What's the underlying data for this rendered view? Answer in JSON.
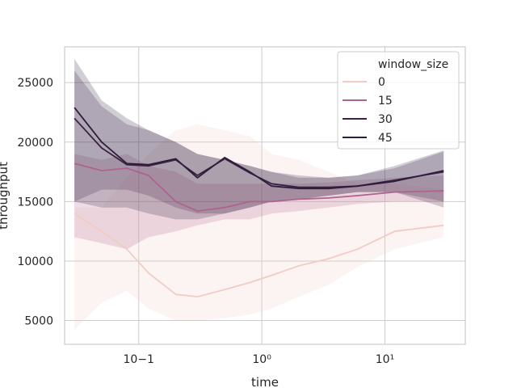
{
  "chart_data": {
    "type": "line",
    "xlabel": "time",
    "ylabel": "throughput",
    "xscale": "log",
    "xlim": [
      0.025,
      45
    ],
    "ylim": [
      3000,
      28000
    ],
    "xticks": [
      {
        "value": 0.1,
        "label": "10−1"
      },
      {
        "value": 1,
        "label": "10⁰"
      },
      {
        "value": 10,
        "label": "10¹"
      }
    ],
    "yticks": [
      5000,
      10000,
      15000,
      20000,
      25000
    ],
    "grid": true,
    "legend": {
      "title": "window_size",
      "position": "top-right",
      "entries": [
        "0",
        "15",
        "30",
        "45"
      ]
    },
    "series": [
      {
        "name": "0",
        "color": "#f0ccc4",
        "band_lower": [
          4200,
          6500,
          7500,
          6000,
          5000,
          5000,
          5200,
          5500,
          6000,
          7000,
          8000,
          9500,
          11000,
          12000
        ],
        "band_upper": [
          14500,
          14500,
          17000,
          19000,
          21000,
          21500,
          21000,
          20500,
          19000,
          18500,
          17500,
          16500,
          16500,
          16000
        ],
        "x": [
          0.03,
          0.05,
          0.08,
          0.12,
          0.2,
          0.3,
          0.5,
          0.8,
          1.2,
          2,
          3.5,
          6,
          12,
          30
        ],
        "y": [
          14000,
          12500,
          11000,
          9000,
          7200,
          7000,
          7600,
          8200,
          8800,
          9600,
          10200,
          11000,
          12500,
          13000
        ]
      },
      {
        "name": "15",
        "color": "#b0628f",
        "band_lower": [
          12000,
          11500,
          11000,
          12000,
          12500,
          13000,
          13500,
          13500,
          14000,
          14200,
          14500,
          14800,
          15000,
          15000
        ],
        "band_upper": [
          19000,
          18500,
          19000,
          18000,
          17500,
          16500,
          16500,
          16500,
          16500,
          16500,
          16600,
          16800,
          17000,
          17200
        ],
        "x": [
          0.03,
          0.05,
          0.08,
          0.12,
          0.2,
          0.3,
          0.5,
          0.8,
          1.2,
          2,
          3.5,
          6,
          12,
          30
        ],
        "y": [
          18200,
          17600,
          17800,
          17200,
          15000,
          14200,
          14500,
          15000,
          15000,
          15200,
          15300,
          15500,
          15800,
          15900
        ]
      },
      {
        "name": "30",
        "color": "#3d2143",
        "band_lower": [
          15000,
          16000,
          16000,
          15500,
          14500,
          14000,
          14000,
          14500,
          15000,
          15200,
          15500,
          15800,
          15800,
          14500
        ],
        "band_upper": [
          26000,
          23000,
          21500,
          21000,
          20000,
          19000,
          18500,
          18000,
          17500,
          17000,
          17000,
          17200,
          17800,
          19200
        ],
        "x": [
          0.03,
          0.05,
          0.08,
          0.12,
          0.2,
          0.3,
          0.5,
          0.8,
          1.2,
          2,
          3.5,
          6,
          12,
          30
        ],
        "y": [
          22000,
          19500,
          18100,
          18000,
          18500,
          17200,
          18600,
          17400,
          16500,
          16200,
          16200,
          16300,
          16800,
          17500
        ]
      },
      {
        "name": "45",
        "color": "#2d1e3e",
        "band_lower": [
          15000,
          14500,
          14500,
          14000,
          13500,
          13500,
          14000,
          14500,
          15000,
          15200,
          15500,
          15800,
          15800,
          15000
        ],
        "band_upper": [
          27000,
          23500,
          22000,
          21000,
          20000,
          19000,
          18500,
          18000,
          17500,
          17200,
          17000,
          17200,
          18000,
          19300
        ],
        "x": [
          0.03,
          0.05,
          0.08,
          0.12,
          0.2,
          0.3,
          0.5,
          0.8,
          1.2,
          2,
          3.5,
          6,
          12,
          30
        ],
        "y": [
          22900,
          20000,
          18200,
          18100,
          18600,
          17000,
          18700,
          17500,
          16300,
          16100,
          16100,
          16300,
          16700,
          17600
        ]
      }
    ]
  }
}
